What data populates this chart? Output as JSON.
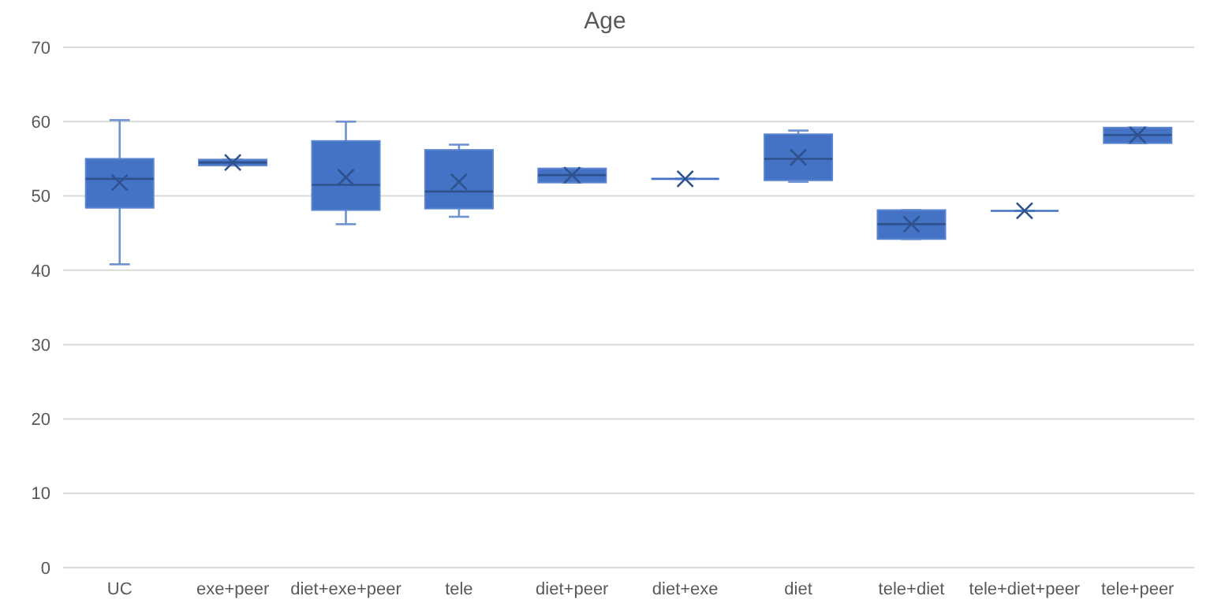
{
  "chart_data": {
    "type": "box",
    "title": "Age",
    "categories": [
      "UC",
      "exe+peer",
      "diet+exe+peer",
      "tele",
      "diet+peer",
      "diet+exe",
      "diet",
      "tele+diet",
      "tele+diet+peer",
      "tele+peer"
    ],
    "color": "#4472c4",
    "ylim": [
      0,
      70
    ],
    "yticks": [
      0,
      10,
      20,
      30,
      40,
      50,
      60,
      70
    ],
    "grid": "y",
    "boxes": [
      {
        "low": 40.8,
        "q1": 48.4,
        "median": 52.3,
        "q3": 55,
        "high": 60.2,
        "mean": 51.8
      },
      {
        "low": 54.1,
        "q1": 54.1,
        "median": 54.5,
        "q3": 54.9,
        "high": 54.9,
        "mean": 54.5
      },
      {
        "low": 46.2,
        "q1": 48.1,
        "median": 51.5,
        "q3": 57.4,
        "high": 60,
        "mean": 52.5
      },
      {
        "low": 47.2,
        "q1": 48.3,
        "median": 50.6,
        "q3": 56.2,
        "high": 56.9,
        "mean": 51.9
      },
      {
        "low": 51.8,
        "q1": 51.8,
        "median": 52.8,
        "q3": 53.7,
        "high": 53.7,
        "mean": 52.8
      },
      {
        "low": 52.3,
        "q1": 52.3,
        "median": 52.3,
        "q3": 52.3,
        "high": 52.3,
        "mean": 52.3
      },
      {
        "low": 51.9,
        "q1": 52.1,
        "median": 55,
        "q3": 58.3,
        "high": 58.8,
        "mean": 55.2
      },
      {
        "low": 44.2,
        "q1": 44.2,
        "median": 46.2,
        "q3": 48.1,
        "high": 48.1,
        "mean": 46.2
      },
      {
        "low": 48,
        "q1": 48,
        "median": 48,
        "q3": 48,
        "high": 48,
        "mean": 48
      },
      {
        "low": 57.1,
        "q1": 57.1,
        "median": 58.2,
        "q3": 59.2,
        "high": 59.2,
        "mean": 58.2
      }
    ]
  }
}
